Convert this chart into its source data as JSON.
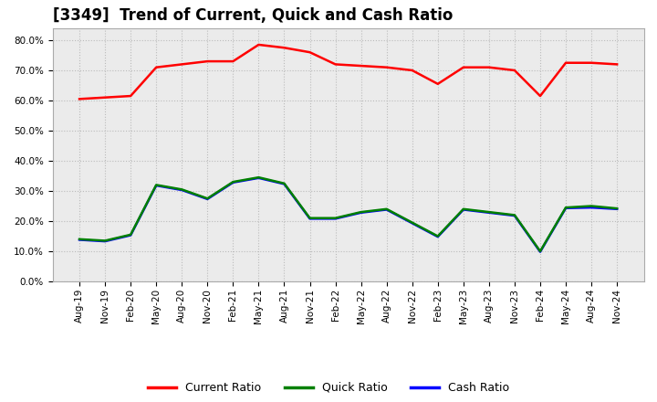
{
  "title": "[3349]  Trend of Current, Quick and Cash Ratio",
  "x_labels": [
    "Aug-19",
    "Nov-19",
    "Feb-20",
    "May-20",
    "Aug-20",
    "Nov-20",
    "Feb-21",
    "May-21",
    "Aug-21",
    "Nov-21",
    "Feb-22",
    "May-22",
    "Aug-22",
    "Nov-22",
    "Feb-23",
    "May-23",
    "Aug-23",
    "Nov-23",
    "Feb-24",
    "May-24",
    "Aug-24",
    "Nov-24"
  ],
  "current_ratio": [
    0.605,
    0.61,
    0.615,
    0.71,
    0.72,
    0.73,
    0.73,
    0.785,
    0.775,
    0.76,
    0.72,
    0.715,
    0.71,
    0.7,
    0.655,
    0.71,
    0.71,
    0.7,
    0.615,
    0.725,
    0.725,
    0.72
  ],
  "quick_ratio": [
    0.14,
    0.135,
    0.155,
    0.32,
    0.305,
    0.275,
    0.33,
    0.345,
    0.325,
    0.21,
    0.21,
    0.23,
    0.24,
    0.195,
    0.15,
    0.24,
    0.23,
    0.22,
    0.1,
    0.245,
    0.25,
    0.242
  ],
  "cash_ratio": [
    0.138,
    0.133,
    0.153,
    0.318,
    0.303,
    0.273,
    0.328,
    0.343,
    0.323,
    0.208,
    0.208,
    0.228,
    0.238,
    0.193,
    0.148,
    0.238,
    0.228,
    0.218,
    0.098,
    0.243,
    0.245,
    0.24
  ],
  "current_color": "#FF0000",
  "quick_color": "#008000",
  "cash_color": "#0000FF",
  "ylim": [
    0.0,
    0.84
  ],
  "yticks": [
    0.0,
    0.1,
    0.2,
    0.3,
    0.4,
    0.5,
    0.6,
    0.7,
    0.8
  ],
  "background_color": "#FFFFFF",
  "plot_bg_color": "#EBEBEB",
  "grid_color": "#BBBBBB",
  "line_width": 1.8,
  "title_fontsize": 12,
  "tick_fontsize": 7.5,
  "legend_fontsize": 9
}
